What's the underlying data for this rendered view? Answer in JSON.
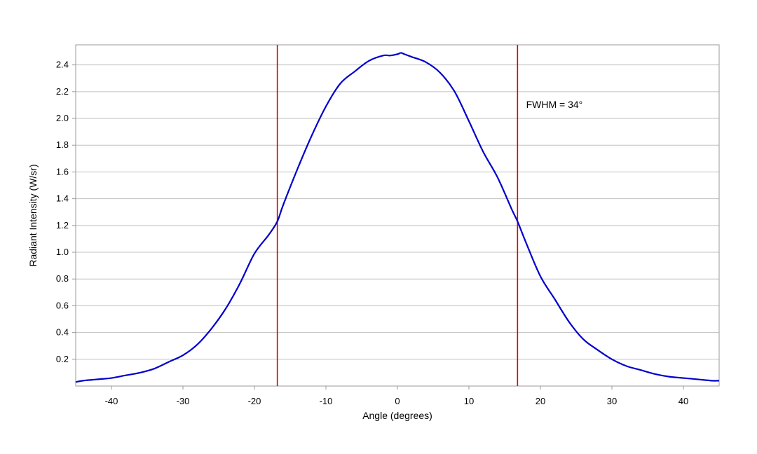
{
  "chart_data": {
    "type": "line",
    "title": "",
    "xlabel": "Angle (degrees)",
    "ylabel": "Radiant Intensity (W/sr)",
    "xlim": [
      -45,
      45
    ],
    "ylim": [
      0,
      2.55
    ],
    "x_ticks": [
      -40,
      -30,
      -20,
      -10,
      0,
      10,
      20,
      30,
      40
    ],
    "x_tick_labels": [
      "-40",
      "-30",
      "-20",
      "-10",
      "0",
      "10",
      "20",
      "30",
      "40"
    ],
    "y_ticks": [
      0.2,
      0.4,
      0.6,
      0.8,
      1.0,
      1.2,
      1.4,
      1.6,
      1.8,
      2.0,
      2.2,
      2.4
    ],
    "y_tick_labels": [
      "0.2",
      "0.4",
      "0.6",
      "0.8",
      "1.0",
      "1.2",
      "1.4",
      "1.6",
      "1.8",
      "2.0",
      "2.2",
      "2.4"
    ],
    "grid": "horizontal",
    "series": [
      {
        "color": "#0000cc",
        "x": [
          -45,
          -44,
          -42,
          -40,
          -38,
          -36,
          -34,
          -32,
          -30,
          -28,
          -26,
          -24,
          -22,
          -20,
          -18,
          -16.8,
          -16,
          -14,
          -12,
          -10,
          -8,
          -6,
          -4,
          -2,
          -1,
          0,
          0.5,
          1,
          2,
          4,
          6,
          8,
          10,
          12,
          14,
          16,
          16.8,
          18,
          20,
          22,
          24,
          26,
          28,
          30,
          32,
          34,
          36,
          38,
          40,
          42,
          44,
          45
        ],
        "y": [
          0.03,
          0.04,
          0.05,
          0.06,
          0.08,
          0.1,
          0.13,
          0.18,
          0.23,
          0.31,
          0.43,
          0.58,
          0.77,
          0.99,
          1.13,
          1.23,
          1.35,
          1.62,
          1.87,
          2.09,
          2.26,
          2.35,
          2.43,
          2.47,
          2.47,
          2.48,
          2.49,
          2.48,
          2.46,
          2.42,
          2.34,
          2.2,
          1.98,
          1.75,
          1.56,
          1.32,
          1.23,
          1.07,
          0.82,
          0.65,
          0.48,
          0.35,
          0.27,
          0.2,
          0.15,
          0.12,
          0.09,
          0.07,
          0.06,
          0.05,
          0.04,
          0.04
        ]
      }
    ],
    "reference_lines": [
      {
        "axis": "x",
        "value": -16.8,
        "color": "#dd0000"
      },
      {
        "axis": "x",
        "value": 16.8,
        "color": "#dd0000"
      }
    ],
    "annotations": [
      {
        "text": "FWHM = 34°",
        "x": 18,
        "y": 2.08
      }
    ]
  }
}
